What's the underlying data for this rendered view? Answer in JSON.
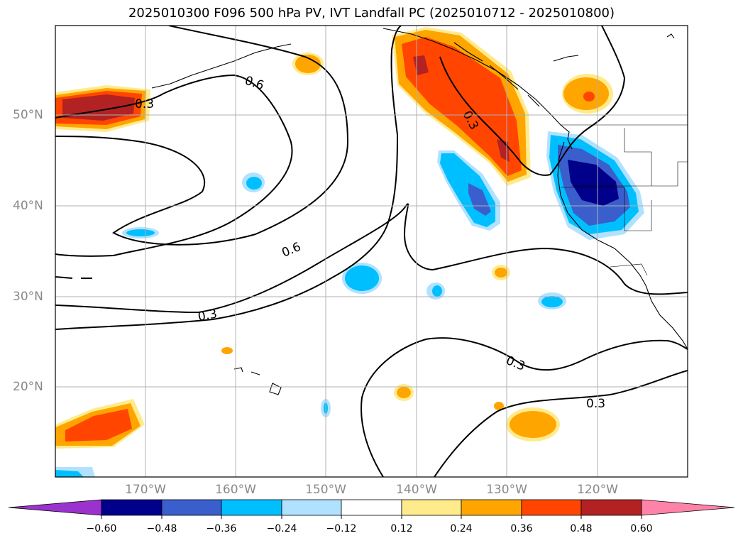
{
  "title": "2025010300 F096 500 hPa PV, IVT Landfall PC (2025010712 - 2025010800)",
  "lat_labels": [
    "50°N",
    "40°N",
    "30°N",
    "20°N"
  ],
  "lon_labels": [
    "170°W",
    "160°W",
    "150°W",
    "140°W",
    "130°W",
    "120°W"
  ],
  "contour_labels": [
    "0.3",
    "0.6",
    "0.3",
    "0.6",
    "0.3",
    "0.3",
    "0.3"
  ],
  "colorbar": {
    "ticks": [
      "−0.60",
      "−0.48",
      "−0.36",
      "−0.24",
      "−0.12",
      "0.12",
      "0.24",
      "0.36",
      "0.48",
      "0.60"
    ],
    "colors": [
      "#9a32cd",
      "#00008b",
      "#3a5fcd",
      "#00bfff",
      "#b0e2ff",
      "#ffffff",
      "#ffeb8c",
      "#ffa500",
      "#ff4500",
      "#b22222",
      "#ff83a8"
    ]
  },
  "colors": {
    "grid": "#b0b0b0",
    "contour": "#000000",
    "tick_label": "#888888"
  }
}
